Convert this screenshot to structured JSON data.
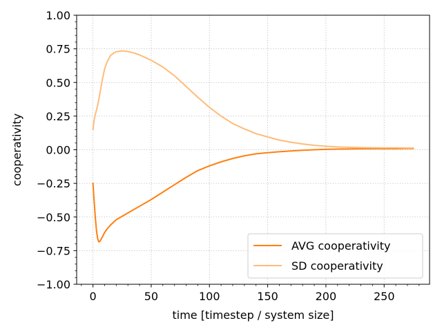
{
  "chart_data": {
    "type": "line",
    "xlabel": "time [timestep / system size]",
    "ylabel": "cooperativity",
    "xlim": [
      -14,
      289
    ],
    "ylim": [
      -1.0,
      1.0
    ],
    "x_ticks": [
      0,
      50,
      100,
      150,
      200,
      250
    ],
    "x_tick_labels": [
      "0",
      "50",
      "100",
      "150",
      "200",
      "250"
    ],
    "y_ticks": [
      -1.0,
      -0.75,
      -0.5,
      -0.25,
      0.0,
      0.25,
      0.5,
      0.75,
      1.0
    ],
    "y_tick_labels": [
      "−1.00",
      "−0.75",
      "−0.50",
      "−0.25",
      "0.00",
      "0.25",
      "0.50",
      "0.75",
      "1.00"
    ],
    "grid": true,
    "legend_position": "lower-right",
    "series": [
      {
        "name": "AVG cooperativity",
        "color": "#ff7f0e",
        "x": [
          0,
          1,
          2,
          3,
          4,
          5,
          6,
          7,
          8,
          10,
          12,
          15,
          20,
          25,
          30,
          40,
          50,
          60,
          70,
          80,
          90,
          100,
          110,
          120,
          130,
          140,
          150,
          160,
          170,
          180,
          190,
          200,
          210,
          220,
          230,
          240,
          250,
          260,
          270,
          275
        ],
        "y": [
          -0.25,
          -0.38,
          -0.5,
          -0.6,
          -0.66,
          -0.685,
          -0.68,
          -0.665,
          -0.65,
          -0.615,
          -0.59,
          -0.56,
          -0.52,
          -0.495,
          -0.47,
          -0.42,
          -0.37,
          -0.315,
          -0.26,
          -0.205,
          -0.155,
          -0.12,
          -0.09,
          -0.065,
          -0.045,
          -0.03,
          -0.022,
          -0.015,
          -0.009,
          -0.004,
          0.0,
          0.003,
          0.005,
          0.006,
          0.007,
          0.008,
          0.008,
          0.008,
          0.009,
          0.009
        ]
      },
      {
        "name": "SD cooperativity",
        "color": "#ffbb78",
        "x": [
          0,
          1,
          2,
          4,
          6,
          8,
          10,
          12,
          15,
          18,
          20,
          25,
          30,
          35,
          40,
          50,
          60,
          70,
          80,
          90,
          100,
          110,
          120,
          130,
          140,
          150,
          160,
          170,
          180,
          190,
          200,
          210,
          220,
          230,
          240,
          250,
          260,
          270,
          275
        ],
        "y": [
          0.15,
          0.22,
          0.26,
          0.33,
          0.42,
          0.52,
          0.6,
          0.65,
          0.7,
          0.72,
          0.728,
          0.735,
          0.73,
          0.72,
          0.705,
          0.665,
          0.615,
          0.55,
          0.47,
          0.39,
          0.315,
          0.25,
          0.195,
          0.155,
          0.12,
          0.095,
          0.072,
          0.056,
          0.043,
          0.033,
          0.026,
          0.021,
          0.018,
          0.016,
          0.015,
          0.014,
          0.014,
          0.013,
          0.013
        ]
      }
    ]
  }
}
